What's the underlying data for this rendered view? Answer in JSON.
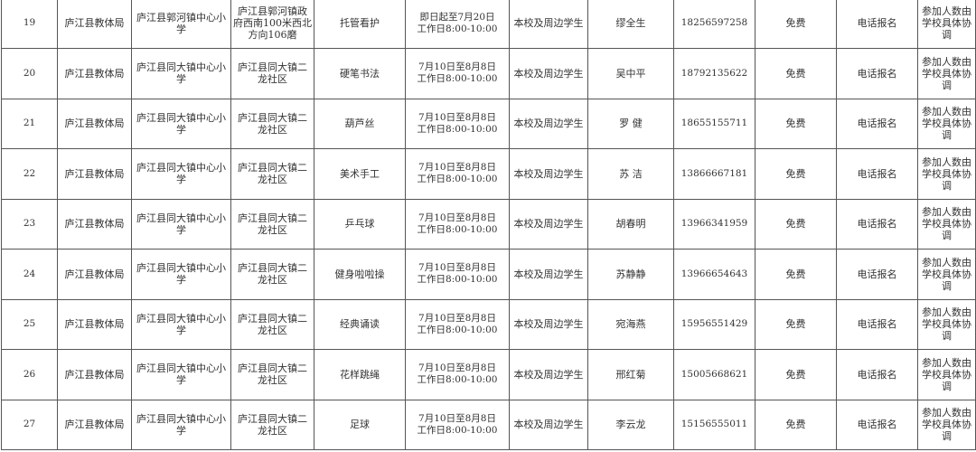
{
  "rows": [
    {
      "no": "19",
      "bureau": "庐江县教体局",
      "school": "庐江县郭河镇中心小学",
      "location": "庐江县郭河镇政府西南100米西北方向106磨",
      "activity": "托管看护",
      "time_line1": "即日起至7月20日",
      "time_line2": "工作日8:00-10:00",
      "target": "本校及周边学生",
      "contact": "缪全生",
      "phone": "18256597258",
      "fee": "免费",
      "signup": "电话报名",
      "quota": "参加人数由学校具体协调"
    },
    {
      "no": "20",
      "bureau": "庐江县教体局",
      "school": "庐江县同大镇中心小学",
      "location": "庐江县同大镇二龙社区",
      "activity": "硬笔书法",
      "time_line1": "7月10日至8月8日",
      "time_line2": "工作日8:00-10:00",
      "target": "本校及周边学生",
      "contact": "吴中平",
      "phone": "18792135622",
      "fee": "免费",
      "signup": "电话报名",
      "quota": "参加人数由学校具体协调"
    },
    {
      "no": "21",
      "bureau": "庐江县教体局",
      "school": "庐江县同大镇中心小学",
      "location": "庐江县同大镇二龙社区",
      "activity": "葫芦丝",
      "time_line1": "7月10日至8月8日",
      "time_line2": "工作日8:00-10:00",
      "target": "本校及周边学生",
      "contact": "罗 健",
      "phone": "18655155711",
      "fee": "免费",
      "signup": "电话报名",
      "quota": "参加人数由学校具体协调"
    },
    {
      "no": "22",
      "bureau": "庐江县教体局",
      "school": "庐江县同大镇中心小学",
      "location": "庐江县同大镇二龙社区",
      "activity": "美术手工",
      "time_line1": "7月10日至8月8日",
      "time_line2": "工作日8:00-10:00",
      "target": "本校及周边学生",
      "contact": "苏 洁",
      "phone": "13866667181",
      "fee": "免费",
      "signup": "电话报名",
      "quota": "参加人数由学校具体协调"
    },
    {
      "no": "23",
      "bureau": "庐江县教体局",
      "school": "庐江县同大镇中心小学",
      "location": "庐江县同大镇二龙社区",
      "activity": "乒乓球",
      "time_line1": "7月10日至8月8日",
      "time_line2": "工作日8:00-10:00",
      "target": "本校及周边学生",
      "contact": "胡春明",
      "phone": "13966341959",
      "fee": "免费",
      "signup": "电话报名",
      "quota": "参加人数由学校具体协调"
    },
    {
      "no": "24",
      "bureau": "庐江县教体局",
      "school": "庐江县同大镇中心小学",
      "location": "庐江县同大镇二龙社区",
      "activity": "健身啦啦操",
      "time_line1": "7月10日至8月8日",
      "time_line2": "工作日8:00-10:00",
      "target": "本校及周边学生",
      "contact": "苏静静",
      "phone": "13966654643",
      "fee": "免费",
      "signup": "电话报名",
      "quota": "参加人数由学校具体协调"
    },
    {
      "no": "25",
      "bureau": "庐江县教体局",
      "school": "庐江县同大镇中心小学",
      "location": "庐江县同大镇二龙社区",
      "activity": "经典诵读",
      "time_line1": "7月10日至8月8日",
      "time_line2": "工作日8:00-10:00",
      "target": "本校及周边学生",
      "contact": "宛海燕",
      "phone": "15956551429",
      "fee": "免费",
      "signup": "电话报名",
      "quota": "参加人数由学校具体协调"
    },
    {
      "no": "26",
      "bureau": "庐江县教体局",
      "school": "庐江县同大镇中心小学",
      "location": "庐江县同大镇二龙社区",
      "activity": "花样跳绳",
      "time_line1": "7月10日至8月8日",
      "time_line2": "工作日8:00-10:00",
      "target": "本校及周边学生",
      "contact": "邢红菊",
      "phone": "15005668621",
      "fee": "免费",
      "signup": "电话报名",
      "quota": "参加人数由学校具体协调"
    },
    {
      "no": "27",
      "bureau": "庐江县教体局",
      "school": "庐江县同大镇中心小学",
      "location": "庐江县同大镇二龙社区",
      "activity": "足球",
      "time_line1": "7月10日至8月8日",
      "time_line2": "工作日8:00-10:00",
      "target": "本校及周边学生",
      "contact": "李云龙",
      "phone": "15156555011",
      "fee": "免费",
      "signup": "电话报名",
      "quota": "参加人数由学校具体协调"
    }
  ]
}
